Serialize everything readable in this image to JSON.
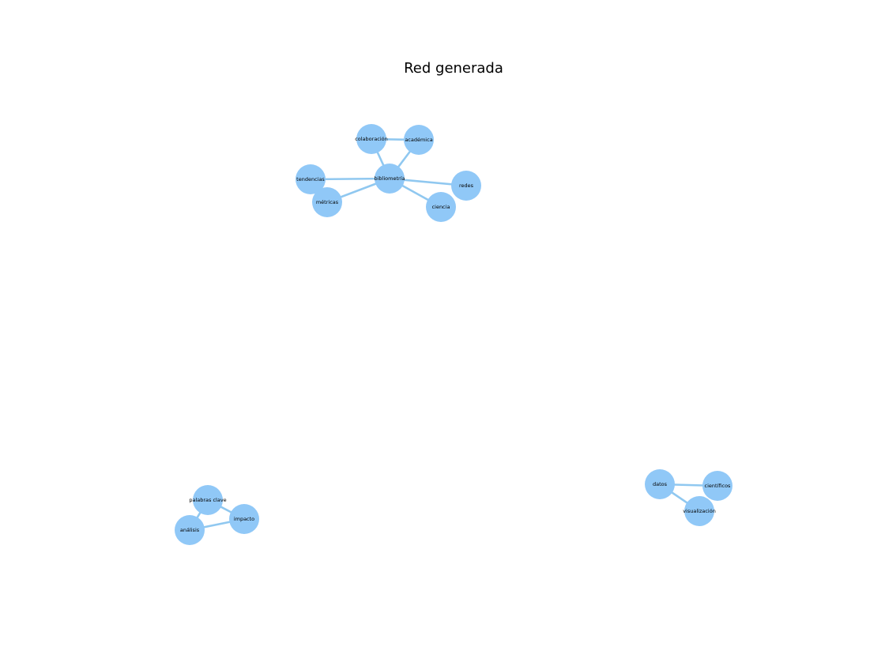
{
  "title": "Red generada",
  "colors": {
    "node": "#90c8f7",
    "edge": "#90c8f0",
    "background": "#ffffff",
    "text": "#000000"
  },
  "nodes": [
    {
      "id": "colaboracion",
      "label": "colaboración"
    },
    {
      "id": "academica",
      "label": "académica"
    },
    {
      "id": "tendencias",
      "label": "tendencias"
    },
    {
      "id": "bibliometria",
      "label": "bibliometría"
    },
    {
      "id": "redes",
      "label": "redes"
    },
    {
      "id": "metricas",
      "label": "métricas"
    },
    {
      "id": "ciencia",
      "label": "ciencia"
    },
    {
      "id": "palabras_clave",
      "label": "palabras clave"
    },
    {
      "id": "impacto",
      "label": "impacto"
    },
    {
      "id": "analisis",
      "label": "análisis"
    },
    {
      "id": "datos",
      "label": "datos"
    },
    {
      "id": "cientificos",
      "label": "científicos"
    },
    {
      "id": "visualizacion",
      "label": "visualización"
    }
  ],
  "edges": [
    [
      "colaboracion",
      "academica"
    ],
    [
      "colaboracion",
      "bibliometria"
    ],
    [
      "academica",
      "bibliometria"
    ],
    [
      "tendencias",
      "bibliometria"
    ],
    [
      "metricas",
      "bibliometria"
    ],
    [
      "bibliometria",
      "redes"
    ],
    [
      "bibliometria",
      "ciencia"
    ],
    [
      "palabras_clave",
      "impacto"
    ],
    [
      "palabras_clave",
      "analisis"
    ],
    [
      "analisis",
      "impacto"
    ],
    [
      "datos",
      "cientificos"
    ],
    [
      "datos",
      "visualizacion"
    ]
  ]
}
